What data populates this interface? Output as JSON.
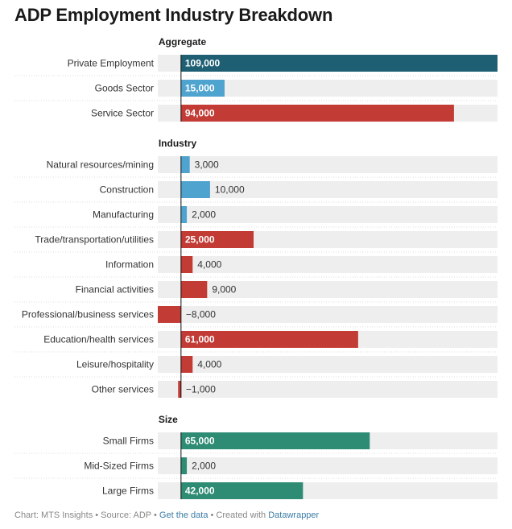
{
  "chart_data": {
    "type": "bar",
    "title": "ADP Employment Industry Breakdown",
    "xlim": [
      -8000,
      109000
    ],
    "grid": false,
    "groups": [
      {
        "name": "Aggregate",
        "rows": [
          {
            "label": "Private Employment",
            "value": 109000,
            "display": "109,000",
            "color": "#1e5f74"
          },
          {
            "label": "Goods Sector",
            "value": 15000,
            "display": "15,000",
            "color": "#4fa3cf"
          },
          {
            "label": "Service Sector",
            "value": 94000,
            "display": "94,000",
            "color": "#c23b35"
          }
        ]
      },
      {
        "name": "Industry",
        "rows": [
          {
            "label": "Natural resources/mining",
            "value": 3000,
            "display": "3,000",
            "color": "#4fa3cf"
          },
          {
            "label": "Construction",
            "value": 10000,
            "display": "10,000",
            "color": "#4fa3cf"
          },
          {
            "label": "Manufacturing",
            "value": 2000,
            "display": "2,000",
            "color": "#4fa3cf"
          },
          {
            "label": "Trade/transportation/utilities",
            "value": 25000,
            "display": "25,000",
            "color": "#c23b35"
          },
          {
            "label": "Information",
            "value": 4000,
            "display": "4,000",
            "color": "#c23b35"
          },
          {
            "label": "Financial activities",
            "value": 9000,
            "display": "9,000",
            "color": "#c23b35"
          },
          {
            "label": "Professional/business services",
            "value": -8000,
            "display": "−8,000",
            "color": "#c23b35"
          },
          {
            "label": "Education/health services",
            "value": 61000,
            "display": "61,000",
            "color": "#c23b35"
          },
          {
            "label": "Leisure/hospitality",
            "value": 4000,
            "display": "4,000",
            "color": "#c23b35"
          },
          {
            "label": "Other services",
            "value": -1000,
            "display": "−1,000",
            "color": "#c23b35"
          }
        ]
      },
      {
        "name": "Size",
        "rows": [
          {
            "label": "Small Firms",
            "value": 65000,
            "display": "65,000",
            "color": "#2e8b74"
          },
          {
            "label": "Mid-Sized Firms",
            "value": 2000,
            "display": "2,000",
            "color": "#2e8b74"
          },
          {
            "label": "Large Firms",
            "value": 42000,
            "display": "42,000",
            "color": "#2e8b74"
          }
        ]
      }
    ]
  },
  "footer": {
    "prefix": "Chart: MTS Insights • Source: ADP • ",
    "data_link": "Get the data",
    "middle": " • Created with ",
    "tool_link": "Datawrapper"
  }
}
